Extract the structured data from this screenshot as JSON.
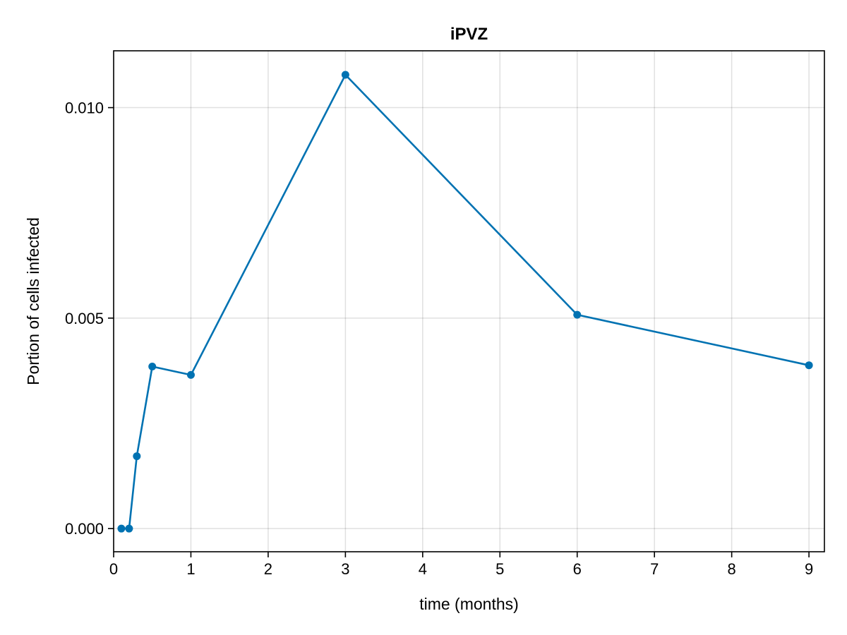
{
  "chart_data": {
    "type": "line",
    "title": "iPVZ",
    "xlabel": "time (months)",
    "ylabel": "Portion of cells infected",
    "xlim": [
      0,
      9.2
    ],
    "ylim": [
      -0.00055,
      0.01135
    ],
    "xticks": [
      0,
      1,
      2,
      3,
      4,
      5,
      6,
      7,
      8,
      9
    ],
    "xtick_labels": [
      "0",
      "1",
      "2",
      "3",
      "4",
      "5",
      "6",
      "7",
      "8",
      "9"
    ],
    "yticks": [
      0.0,
      0.005,
      0.01
    ],
    "ytick_labels": [
      "0.000",
      "0.005",
      "0.010"
    ],
    "grid": true,
    "colors": {
      "series": "#0072b2"
    },
    "series": [
      {
        "x": [
          0.1,
          0.2,
          0.3,
          0.5,
          1,
          3,
          6,
          9
        ],
        "y": [
          0.0,
          0.0,
          0.00172,
          0.00385,
          0.00365,
          0.01078,
          0.00508,
          0.00388
        ]
      }
    ]
  }
}
